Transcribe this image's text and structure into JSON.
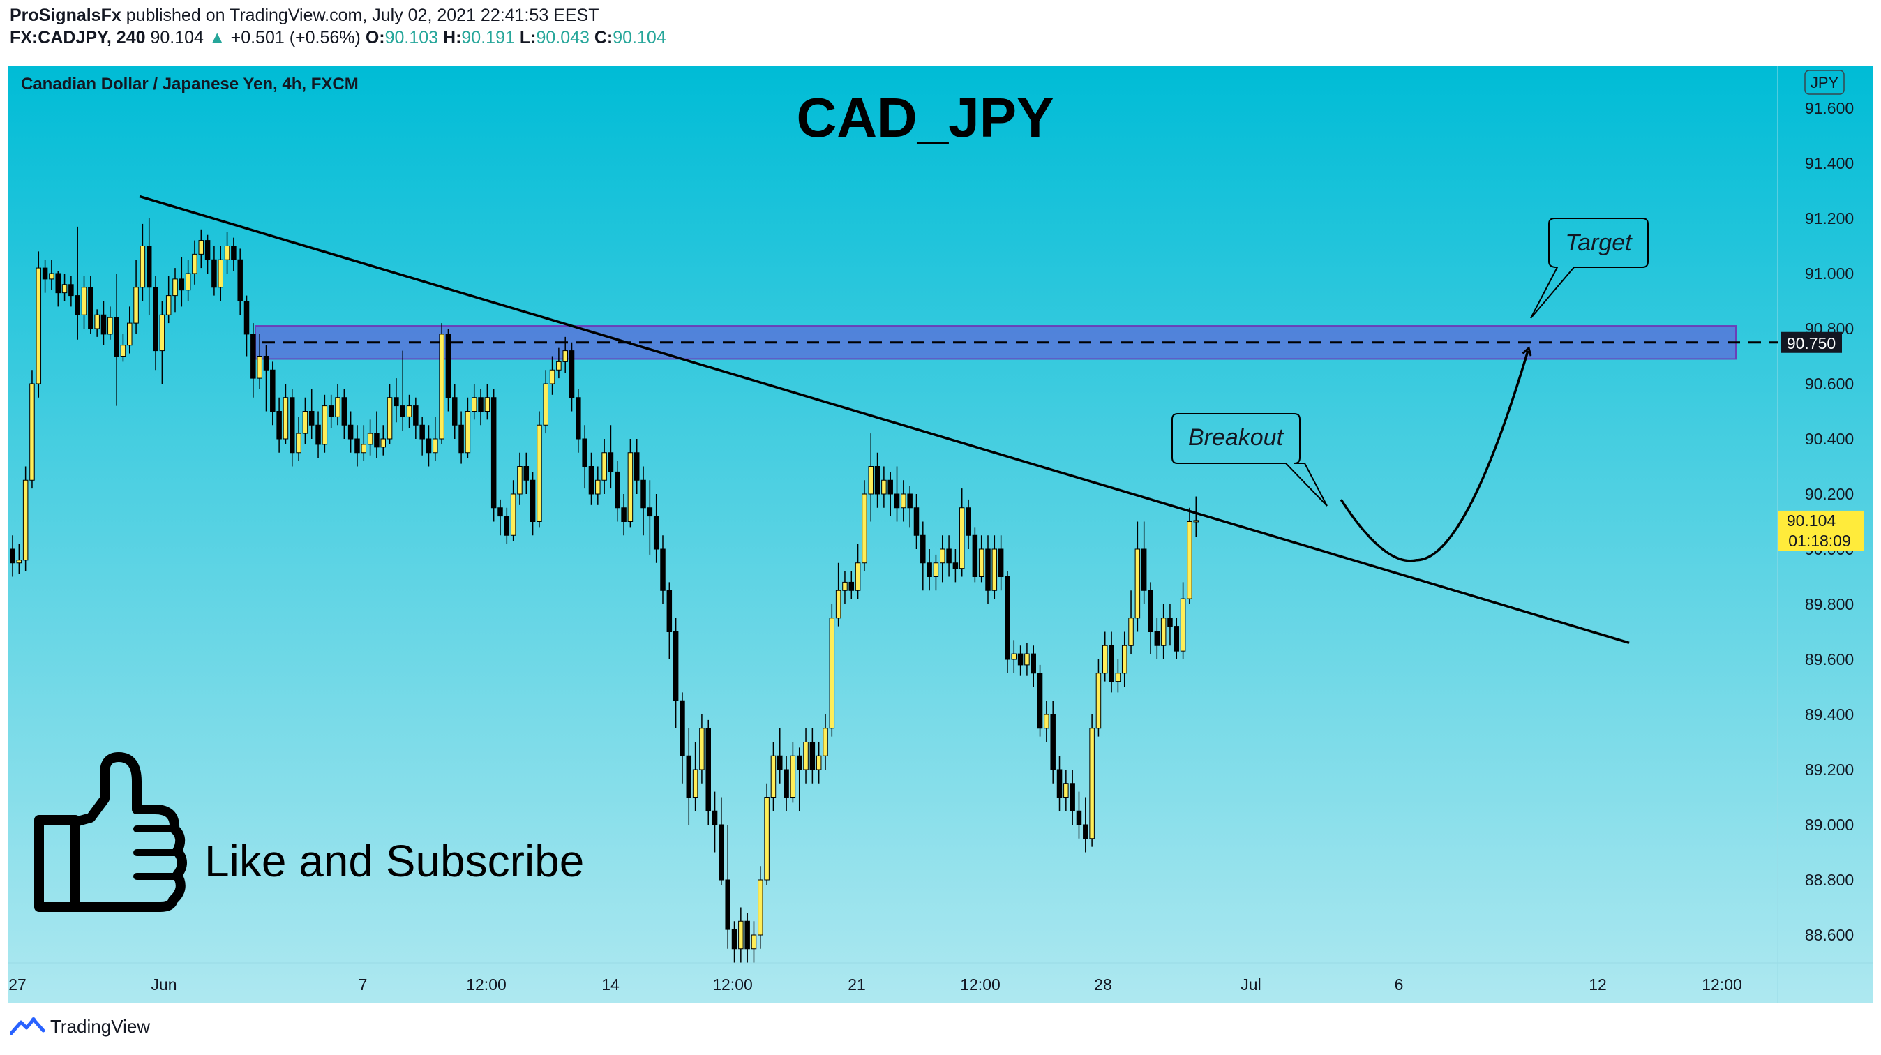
{
  "header": {
    "author": "ProSignalsFx",
    "published_text": " published on TradingView.com, July 02, 2021 22:41:53 EEST",
    "symbol": "FX:CADJPY, 240",
    "last": "90.104",
    "change_arrow": "▲",
    "change": "+0.501 (+0.56%)",
    "o_label": "O:",
    "o": "90.103",
    "h_label": "H:",
    "h": "90.191",
    "l_label": "L:",
    "l": "90.043",
    "c_label": "C:",
    "c": "90.104"
  },
  "chart_title": "Canadian Dollar / Japanese Yen, 4h, FXCM",
  "overlay_title": "CAD_JPY",
  "currency_badge": "JPY",
  "callouts": {
    "target": "Target",
    "breakout": "Breakout"
  },
  "cta": "Like and Subscribe",
  "footer": {
    "brand": "TradingView",
    "logo_icon": "tradingview-logo-icon"
  },
  "colors": {
    "bg_top": "#00bcd6",
    "bg_bottom": "#aee8f0",
    "candle_up": "#ffee58",
    "candle_down": "#000000",
    "zone_fill": "#5a6fd8",
    "zone_border": "#6a3fb8",
    "last_price_bg": "#ffeb3b"
  },
  "chart_data": {
    "type": "candlestick",
    "timeframe": "4h",
    "ylim": [
      88.5,
      91.75
    ],
    "y_ticks": [
      "91.600",
      "91.400",
      "91.200",
      "91.000",
      "90.800",
      "90.600",
      "90.400",
      "90.200",
      "90.000",
      "89.800",
      "89.600",
      "89.400",
      "89.200",
      "89.000",
      "88.800",
      "88.600"
    ],
    "x_ticks": [
      "27",
      "Jun",
      "7",
      "12:00",
      "14",
      "12:00",
      "21",
      "12:00",
      "28",
      "Jul",
      "6",
      "12",
      "12:00"
    ],
    "price_labels": {
      "target_level": "90.750",
      "last_price": "90.104",
      "countdown": "01:18:09"
    },
    "levels": [
      {
        "name": "resistance",
        "value": 90.75,
        "zone": [
          90.69,
          90.81
        ]
      }
    ],
    "trendline": {
      "from": 91.28,
      "to": 89.66
    },
    "projection": {
      "start": 90.18,
      "trough": 89.96,
      "end": 90.72
    },
    "candles": [
      [
        90.0,
        89.95,
        90.05,
        89.9
      ],
      [
        89.95,
        89.96,
        90.02,
        89.91
      ],
      [
        89.96,
        90.25,
        90.3,
        89.92
      ],
      [
        90.25,
        90.6,
        90.65,
        90.22
      ],
      [
        90.6,
        91.02,
        91.08,
        90.55
      ],
      [
        91.02,
        90.98,
        91.05,
        90.93
      ],
      [
        90.98,
        91.0,
        91.05,
        90.94
      ],
      [
        91.0,
        90.93,
        91.01,
        90.88
      ],
      [
        90.93,
        90.96,
        91.0,
        90.9
      ],
      [
        90.96,
        90.92,
        90.99,
        90.88
      ],
      [
        90.92,
        90.85,
        91.17,
        90.76
      ],
      [
        90.85,
        90.95,
        90.99,
        90.8
      ],
      [
        90.95,
        90.8,
        90.99,
        90.78
      ],
      [
        90.8,
        90.85,
        90.87,
        90.77
      ],
      [
        90.85,
        90.78,
        90.9,
        90.74
      ],
      [
        90.78,
        90.84,
        90.88,
        90.76
      ],
      [
        90.84,
        90.7,
        91.0,
        90.52
      ],
      [
        90.7,
        90.74,
        90.78,
        90.68
      ],
      [
        90.74,
        90.82,
        90.88,
        90.71
      ],
      [
        90.82,
        90.95,
        91.05,
        90.78
      ],
      [
        90.95,
        91.1,
        91.18,
        90.9
      ],
      [
        91.1,
        90.95,
        91.2,
        90.85
      ],
      [
        90.95,
        90.72,
        90.99,
        90.65
      ],
      [
        90.72,
        90.85,
        90.9,
        90.6
      ],
      [
        90.85,
        90.92,
        90.99,
        90.82
      ],
      [
        90.92,
        90.98,
        91.02,
        90.86
      ],
      [
        90.98,
        90.94,
        91.06,
        90.88
      ],
      [
        90.94,
        91.0,
        91.05,
        90.9
      ],
      [
        91.0,
        91.07,
        91.12,
        90.96
      ],
      [
        91.07,
        91.12,
        91.16,
        91.02
      ],
      [
        91.12,
        91.05,
        91.14,
        91.0
      ],
      [
        91.05,
        90.95,
        91.1,
        90.92
      ],
      [
        90.95,
        91.05,
        91.1,
        90.9
      ],
      [
        91.05,
        91.1,
        91.15,
        91.0
      ],
      [
        91.1,
        91.05,
        91.13,
        91.01
      ],
      [
        91.05,
        90.9,
        91.09,
        90.85
      ],
      [
        90.9,
        90.78,
        90.92,
        90.7
      ],
      [
        90.78,
        90.62,
        90.82,
        90.55
      ],
      [
        90.62,
        90.7,
        90.78,
        90.58
      ],
      [
        90.7,
        90.65,
        90.74,
        90.5
      ],
      [
        90.65,
        90.5,
        90.68,
        90.45
      ],
      [
        90.5,
        90.4,
        90.55,
        90.35
      ],
      [
        90.4,
        90.55,
        90.6,
        90.38
      ],
      [
        90.55,
        90.35,
        90.58,
        90.3
      ],
      [
        90.35,
        90.42,
        90.48,
        90.32
      ],
      [
        90.42,
        90.5,
        90.55,
        90.38
      ],
      [
        90.5,
        90.45,
        90.58,
        90.4
      ],
      [
        90.45,
        90.38,
        90.5,
        90.33
      ],
      [
        90.38,
        90.52,
        90.56,
        90.35
      ],
      [
        90.52,
        90.48,
        90.56,
        90.44
      ],
      [
        90.48,
        90.55,
        90.6,
        90.45
      ],
      [
        90.55,
        90.45,
        90.58,
        90.4
      ],
      [
        90.45,
        90.4,
        90.5,
        90.35
      ],
      [
        90.4,
        90.35,
        90.45,
        90.3
      ],
      [
        90.35,
        90.38,
        90.45,
        90.32
      ],
      [
        90.38,
        90.42,
        90.47,
        90.34
      ],
      [
        90.42,
        90.37,
        90.5,
        90.33
      ],
      [
        90.37,
        90.4,
        90.45,
        90.34
      ],
      [
        90.4,
        90.55,
        90.6,
        90.38
      ],
      [
        90.55,
        90.52,
        90.62,
        90.46
      ],
      [
        90.52,
        90.48,
        90.72,
        90.43
      ],
      [
        90.48,
        90.52,
        90.56,
        90.44
      ],
      [
        90.52,
        90.45,
        90.55,
        90.4
      ],
      [
        90.45,
        90.4,
        90.48,
        90.34
      ],
      [
        90.4,
        90.35,
        90.45,
        90.3
      ],
      [
        90.35,
        90.4,
        90.48,
        90.32
      ],
      [
        90.4,
        90.78,
        90.82,
        90.38
      ],
      [
        90.78,
        90.55,
        90.8,
        90.5
      ],
      [
        90.55,
        90.45,
        90.6,
        90.4
      ],
      [
        90.45,
        90.35,
        90.5,
        90.31
      ],
      [
        90.35,
        90.5,
        90.55,
        90.33
      ],
      [
        90.5,
        90.55,
        90.6,
        90.47
      ],
      [
        90.55,
        90.5,
        90.58,
        90.45
      ],
      [
        90.5,
        90.55,
        90.6,
        90.47
      ],
      [
        90.55,
        90.15,
        90.58,
        90.1
      ],
      [
        90.15,
        90.12,
        90.18,
        90.05
      ],
      [
        90.12,
        90.05,
        90.15,
        90.02
      ],
      [
        90.05,
        90.2,
        90.25,
        90.03
      ],
      [
        90.2,
        90.3,
        90.35,
        90.16
      ],
      [
        90.3,
        90.25,
        90.35,
        90.2
      ],
      [
        90.25,
        90.1,
        90.28,
        90.05
      ],
      [
        90.1,
        90.45,
        90.5,
        90.08
      ],
      [
        90.45,
        90.6,
        90.65,
        90.42
      ],
      [
        90.6,
        90.65,
        90.7,
        90.56
      ],
      [
        90.65,
        90.68,
        90.73,
        90.62
      ],
      [
        90.68,
        90.72,
        90.77,
        90.64
      ],
      [
        90.72,
        90.55,
        90.75,
        90.5
      ],
      [
        90.55,
        90.4,
        90.58,
        90.35
      ],
      [
        90.4,
        90.3,
        90.45,
        90.22
      ],
      [
        90.3,
        90.2,
        90.35,
        90.16
      ],
      [
        90.2,
        90.25,
        90.3,
        90.16
      ],
      [
        90.25,
        90.35,
        90.4,
        90.2
      ],
      [
        90.35,
        90.28,
        90.45,
        90.22
      ],
      [
        90.28,
        90.15,
        90.32,
        90.1
      ],
      [
        90.15,
        90.1,
        90.2,
        90.05
      ],
      [
        90.1,
        90.35,
        90.4,
        90.08
      ],
      [
        90.35,
        90.25,
        90.4,
        90.2
      ],
      [
        90.25,
        90.15,
        90.3,
        90.05
      ],
      [
        90.15,
        90.12,
        90.25,
        89.98
      ],
      [
        90.12,
        90.0,
        90.2,
        89.95
      ],
      [
        90.0,
        89.85,
        90.05,
        89.8
      ],
      [
        89.85,
        89.7,
        89.88,
        89.6
      ],
      [
        89.7,
        89.45,
        89.75,
        89.35
      ],
      [
        89.45,
        89.25,
        89.48,
        89.15
      ],
      [
        89.25,
        89.1,
        89.35,
        89.0
      ],
      [
        89.1,
        89.2,
        89.3,
        89.05
      ],
      [
        89.2,
        89.35,
        89.4,
        89.15
      ],
      [
        89.35,
        89.05,
        89.38,
        89.0
      ],
      [
        89.05,
        89.0,
        89.12,
        88.9
      ],
      [
        89.0,
        88.8,
        89.1,
        88.78
      ],
      [
        88.8,
        88.62,
        89.0,
        88.55
      ],
      [
        88.62,
        88.55,
        88.65,
        88.5
      ],
      [
        88.55,
        88.65,
        88.7,
        88.5
      ],
      [
        88.65,
        88.55,
        88.68,
        88.5
      ],
      [
        88.55,
        88.6,
        88.65,
        88.5
      ],
      [
        88.6,
        88.8,
        88.85,
        88.55
      ],
      [
        88.8,
        89.1,
        89.15,
        88.78
      ],
      [
        89.1,
        89.25,
        89.3,
        89.05
      ],
      [
        89.25,
        89.2,
        89.35,
        89.15
      ],
      [
        89.2,
        89.1,
        89.25,
        89.05
      ],
      [
        89.1,
        89.25,
        89.3,
        89.08
      ],
      [
        89.25,
        89.2,
        89.28,
        89.05
      ],
      [
        89.2,
        89.3,
        89.35,
        89.15
      ],
      [
        89.3,
        89.2,
        89.35,
        89.15
      ],
      [
        89.2,
        89.25,
        89.3,
        89.15
      ],
      [
        89.25,
        89.35,
        89.4,
        89.2
      ],
      [
        89.35,
        89.75,
        89.8,
        89.32
      ],
      [
        89.75,
        89.85,
        89.95,
        89.72
      ],
      [
        89.85,
        89.88,
        89.92,
        89.8
      ],
      [
        89.88,
        89.85,
        89.92,
        89.82
      ],
      [
        89.85,
        89.95,
        90.02,
        89.82
      ],
      [
        89.95,
        90.2,
        90.25,
        89.92
      ],
      [
        90.2,
        90.3,
        90.42,
        90.1
      ],
      [
        90.3,
        90.2,
        90.35,
        90.15
      ],
      [
        90.2,
        90.25,
        90.3,
        90.15
      ],
      [
        90.25,
        90.2,
        90.28,
        90.12
      ],
      [
        90.2,
        90.15,
        90.3,
        90.1
      ],
      [
        90.15,
        90.2,
        90.25,
        90.1
      ],
      [
        90.2,
        90.15,
        90.23,
        90.08
      ],
      [
        90.15,
        90.05,
        90.2,
        90.0
      ],
      [
        90.05,
        89.95,
        90.1,
        89.85
      ],
      [
        89.95,
        89.9,
        90.0,
        89.85
      ],
      [
        89.9,
        89.95,
        89.98,
        89.85
      ],
      [
        89.95,
        90.0,
        90.05,
        89.88
      ],
      [
        90.0,
        89.95,
        90.05,
        89.9
      ],
      [
        89.95,
        89.93,
        90.0,
        89.88
      ],
      [
        89.93,
        90.15,
        90.22,
        89.9
      ],
      [
        90.15,
        90.05,
        90.18,
        90.0
      ],
      [
        90.05,
        89.9,
        90.08,
        89.88
      ],
      [
        89.9,
        90.0,
        90.05,
        89.88
      ],
      [
        90.0,
        89.85,
        90.05,
        89.8
      ],
      [
        89.85,
        90.0,
        90.05,
        89.82
      ],
      [
        90.0,
        89.9,
        90.05,
        89.85
      ],
      [
        89.9,
        89.6,
        89.92,
        89.55
      ],
      [
        89.6,
        89.62,
        89.67,
        89.55
      ],
      [
        89.62,
        89.58,
        89.65,
        89.54
      ],
      [
        89.58,
        89.62,
        89.66,
        89.54
      ],
      [
        89.62,
        89.55,
        89.65,
        89.5
      ],
      [
        89.55,
        89.35,
        89.58,
        89.32
      ],
      [
        89.35,
        89.4,
        89.45,
        89.3
      ],
      [
        89.4,
        89.2,
        89.45,
        89.15
      ],
      [
        89.2,
        89.1,
        89.25,
        89.05
      ],
      [
        89.1,
        89.15,
        89.2,
        89.05
      ],
      [
        89.15,
        89.05,
        89.2,
        89.0
      ],
      [
        89.05,
        89.0,
        89.12,
        88.95
      ],
      [
        89.0,
        88.95,
        89.1,
        88.9
      ],
      [
        88.95,
        89.35,
        89.4,
        88.92
      ],
      [
        89.35,
        89.55,
        89.6,
        89.32
      ],
      [
        89.55,
        89.65,
        89.7,
        89.52
      ],
      [
        89.65,
        89.52,
        89.7,
        89.48
      ],
      [
        89.52,
        89.55,
        89.6,
        89.48
      ],
      [
        89.55,
        89.65,
        89.7,
        89.5
      ],
      [
        89.65,
        89.75,
        89.85,
        89.62
      ],
      [
        89.75,
        90.0,
        90.1,
        89.7
      ],
      [
        90.0,
        89.85,
        90.1,
        89.8
      ],
      [
        89.85,
        89.7,
        89.88,
        89.62
      ],
      [
        89.7,
        89.65,
        89.75,
        89.6
      ],
      [
        89.65,
        89.75,
        89.8,
        89.6
      ],
      [
        89.75,
        89.72,
        89.8,
        89.65
      ],
      [
        89.72,
        89.63,
        89.75,
        89.6
      ],
      [
        89.63,
        89.82,
        89.88,
        89.6
      ],
      [
        89.82,
        90.1,
        90.15,
        89.8
      ],
      [
        90.1,
        90.104,
        90.191,
        90.043
      ]
    ]
  }
}
